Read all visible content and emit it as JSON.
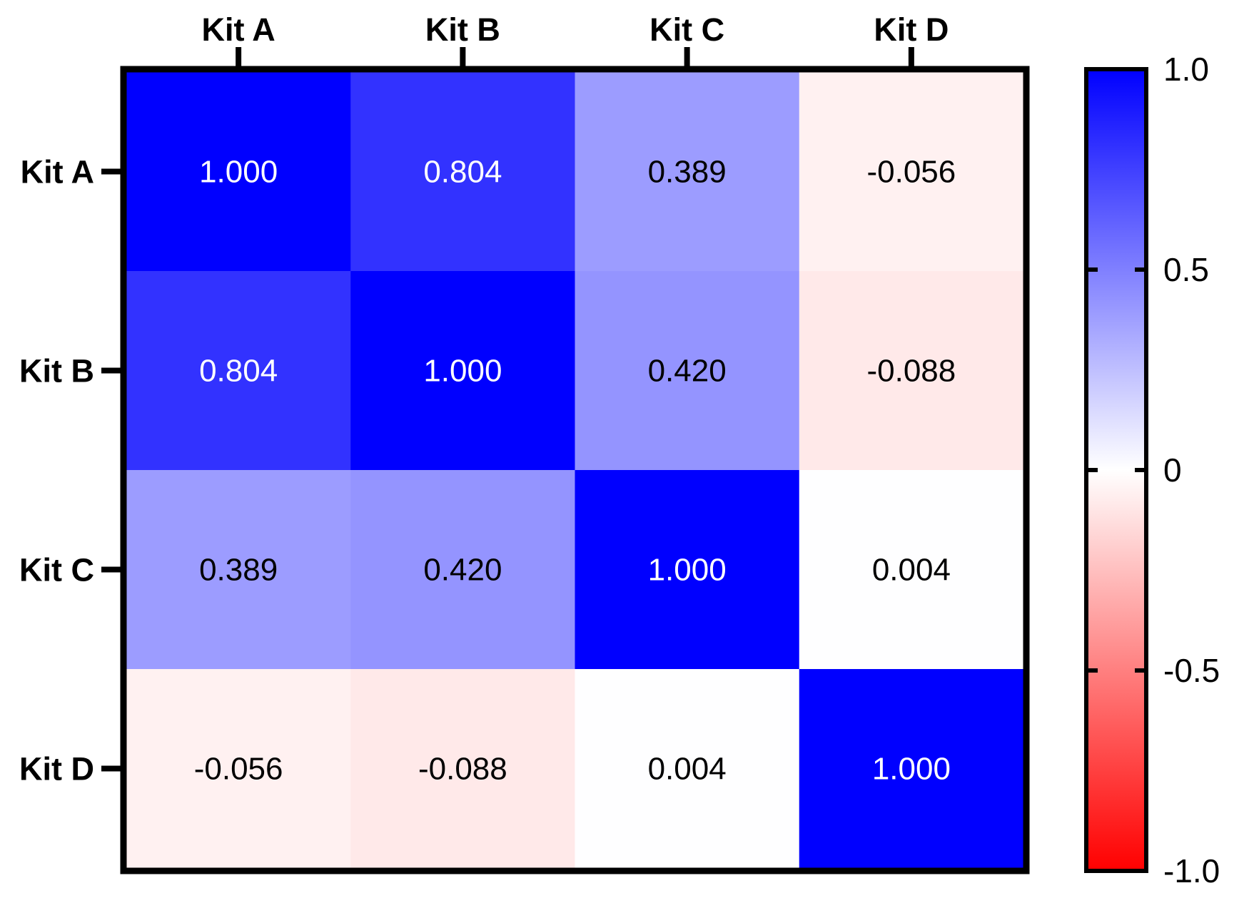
{
  "chart_data": {
    "type": "heatmap",
    "title": "",
    "x_labels": [
      "Kit A",
      "Kit B",
      "Kit C",
      "Kit D"
    ],
    "y_labels": [
      "Kit A",
      "Kit B",
      "Kit C",
      "Kit D"
    ],
    "values": [
      [
        1.0,
        0.804,
        0.389,
        -0.056
      ],
      [
        0.804,
        1.0,
        0.42,
        -0.088
      ],
      [
        0.389,
        0.42,
        1.0,
        0.004
      ],
      [
        -0.056,
        -0.088,
        0.004,
        1.0
      ]
    ],
    "value_labels": [
      [
        "1.000",
        "0.804",
        "0.389",
        "-0.056"
      ],
      [
        "0.804",
        "1.000",
        "0.420",
        "-0.088"
      ],
      [
        "0.389",
        "0.420",
        "1.000",
        "0.004"
      ],
      [
        "-0.056",
        "-0.088",
        "0.004",
        "1.000"
      ]
    ],
    "x_axis_position": "top",
    "colorscale": {
      "min": -1.0,
      "max": 1.0,
      "ticks": [
        1.0,
        0.5,
        0,
        -0.5,
        -1.0
      ],
      "tick_labels": [
        "1.0",
        "0.5",
        "0",
        "-0.5",
        "-1.0"
      ],
      "colors": {
        "min": "#ff0000",
        "mid": "#ffffff",
        "max": "#0000ff"
      },
      "position": "right"
    },
    "grid": false
  }
}
